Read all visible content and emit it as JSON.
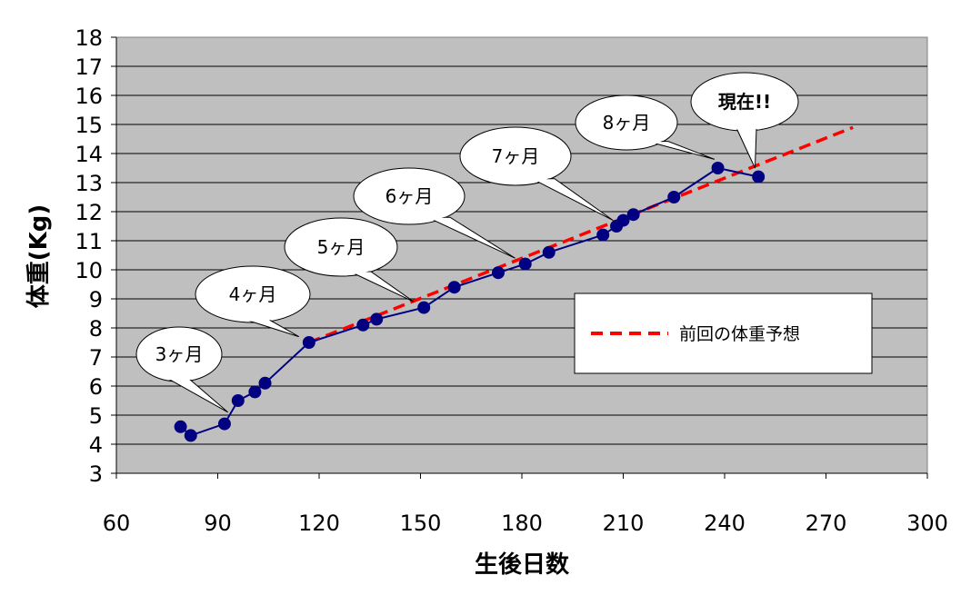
{
  "chart_data": {
    "type": "line",
    "xlabel": "生後日数",
    "ylabel": "体重(Kg)",
    "xlim": [
      60,
      300
    ],
    "ylim": [
      3,
      18
    ],
    "x_ticks": [
      "60",
      "90",
      "120",
      "150",
      "180",
      "210",
      "240",
      "270",
      "300"
    ],
    "y_ticks": [
      "3",
      "4",
      "5",
      "6",
      "7",
      "8",
      "9",
      "10",
      "11",
      "12",
      "13",
      "14",
      "15",
      "16",
      "17",
      "18"
    ],
    "grid": true,
    "legend": {
      "position": "center-right",
      "entries": [
        {
          "label": "前回の体重予想",
          "style": "dashed",
          "color": "#ff0000"
        }
      ]
    },
    "series": [
      {
        "name": "体重",
        "color": "#000080",
        "x": [
          79,
          82,
          92,
          96,
          101,
          104,
          117,
          133,
          137,
          151,
          160,
          173,
          181,
          188,
          204,
          208,
          210,
          213,
          225,
          238,
          250
        ],
        "y": [
          4.6,
          4.3,
          4.7,
          5.5,
          5.8,
          6.1,
          7.5,
          8.1,
          8.3,
          8.7,
          9.4,
          9.9,
          10.2,
          10.6,
          11.2,
          11.5,
          11.7,
          11.9,
          12.5,
          13.5,
          13.2
        ]
      },
      {
        "name": "前回の体重予想",
        "color": "#ff0000",
        "style": "dashed",
        "x": [
          117,
          278
        ],
        "y": [
          7.5,
          14.9
        ]
      }
    ],
    "annotations": [
      {
        "text": "3ヶ月",
        "target_x": 93,
        "target_y": 5.1,
        "color": "#000000"
      },
      {
        "text": "4ヶ月",
        "target_x": 114,
        "target_y": 7.7,
        "color": "#000000"
      },
      {
        "text": "5ヶ月",
        "target_x": 148,
        "target_y": 8.9,
        "color": "#000000"
      },
      {
        "text": "6ヶ月",
        "target_x": 178,
        "target_y": 10.4,
        "color": "#000000"
      },
      {
        "text": "7ヶ月",
        "target_x": 207,
        "target_y": 11.7,
        "color": "#000000"
      },
      {
        "text": "8ヶ月",
        "target_x": 237,
        "target_y": 13.8,
        "color": "#000000"
      },
      {
        "text": "現在!!",
        "target_x": 249,
        "target_y": 13.5,
        "color": "#ff0000"
      }
    ]
  }
}
